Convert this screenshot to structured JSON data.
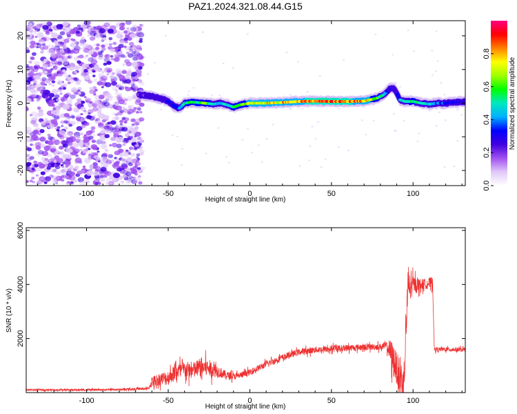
{
  "title": "PAZ1.2024.321.08.44.G15",
  "chart_data": [
    {
      "type": "heatmap",
      "xlabel": "Height of straight line (km)",
      "ylabel": "Frequency (Hz)",
      "xlim": [
        -137,
        132
      ],
      "ylim": [
        -24.5,
        24.5
      ],
      "x_ticks": [
        -100,
        -50,
        0,
        50,
        100
      ],
      "x_tick_labels": [
        "-100",
        "-50",
        "0",
        "50",
        "100"
      ],
      "y_ticks": [
        -20,
        -10,
        0,
        10,
        20
      ],
      "y_tick_labels": [
        "-20",
        "-10",
        "0",
        "10",
        "20"
      ],
      "colorbar": {
        "label": "Normalized spectral amplitude",
        "range": [
          0,
          1
        ],
        "ticks": [
          0.0,
          0.2,
          0.4,
          0.6,
          0.8
        ],
        "tick_labels": [
          "0.0",
          "0.2",
          "0.4",
          "0.6",
          "0.8"
        ],
        "colormap": [
          "#ffffff",
          "#e0c8f8",
          "#a050f0",
          "#4000e0",
          "#0000ff",
          "#00b0ff",
          "#00e8c0",
          "#00ff00",
          "#a0ff00",
          "#ffff00",
          "#ff8000",
          "#ff0000",
          "#ff0080"
        ]
      },
      "noise_region": {
        "x_range": [
          -137,
          -68
        ],
        "freq_range": [
          -24,
          24
        ],
        "amplitude_range": [
          0.05,
          0.25
        ]
      },
      "ridge": {
        "x": [
          -68,
          -62,
          -55,
          -50,
          -46,
          -43,
          -40,
          -36,
          -32,
          -28,
          -22,
          -18,
          -14,
          -10,
          -6,
          0,
          10,
          20,
          30,
          40,
          50,
          60,
          70,
          78,
          82,
          85,
          88,
          90,
          92,
          95,
          100,
          105,
          110,
          115,
          120,
          125,
          132
        ],
        "freq": [
          2.5,
          2.2,
          1.5,
          0.5,
          -1.0,
          -1.5,
          0.0,
          0.3,
          0.2,
          0.0,
          -0.3,
          0.0,
          -0.5,
          -1.2,
          -0.5,
          0.0,
          0.0,
          0.2,
          0.5,
          0.6,
          0.5,
          0.5,
          0.6,
          1.5,
          2.5,
          4.0,
          4.5,
          3.0,
          1.0,
          0.5,
          0.5,
          0.0,
          -0.3,
          0.0,
          0.0,
          0.3,
          0.5
        ],
        "amplitude": [
          0.2,
          0.25,
          0.25,
          0.3,
          0.35,
          0.4,
          0.5,
          0.6,
          0.55,
          0.6,
          0.5,
          0.45,
          0.5,
          0.55,
          0.6,
          0.7,
          0.75,
          0.8,
          0.82,
          0.85,
          0.88,
          0.85,
          0.8,
          0.6,
          0.45,
          0.3,
          0.25,
          0.3,
          0.4,
          0.5,
          0.55,
          0.5,
          0.45,
          0.4,
          0.35,
          0.3,
          0.3
        ]
      }
    },
    {
      "type": "line",
      "xlabel": "Height of straight line (km)",
      "ylabel": "SNR (10 * v/v)",
      "xlim": [
        -137,
        132
      ],
      "ylim": [
        0,
        6100
      ],
      "x_ticks": [
        -100,
        -50,
        0,
        50,
        100
      ],
      "x_tick_labels": [
        "-100",
        "-50",
        "0",
        "50",
        "100"
      ],
      "y_ticks": [
        2000,
        4000,
        6000
      ],
      "y_tick_labels": [
        "2000",
        "4000",
        "6000"
      ],
      "color": "#ee3030",
      "series": [
        {
          "x": [
            -137,
            -120,
            -100,
            -80,
            -62,
            -60,
            -55,
            -50,
            -45,
            -40,
            -35,
            -30,
            -25,
            -20,
            -18,
            -15,
            -10,
            -5,
            0,
            5,
            10,
            20,
            30,
            40,
            50,
            60,
            70,
            80,
            84,
            86,
            88,
            90,
            92,
            94,
            95,
            96,
            97,
            98,
            100,
            105,
            110,
            112,
            113,
            120,
            132
          ],
          "y": [
            100,
            100,
            100,
            110,
            150,
            400,
            500,
            550,
            800,
            850,
            800,
            950,
            900,
            800,
            750,
            650,
            600,
            650,
            750,
            900,
            1050,
            1300,
            1500,
            1580,
            1620,
            1650,
            1680,
            1700,
            1720,
            1500,
            1200,
            900,
            600,
            300,
            1200,
            2800,
            4200,
            3800,
            4000,
            4000,
            4050,
            4100,
            1600,
            1600,
            1580
          ],
          "noise": [
            40,
            40,
            40,
            40,
            60,
            250,
            300,
            350,
            350,
            400,
            400,
            450,
            400,
            300,
            250,
            200,
            150,
            150,
            150,
            150,
            150,
            150,
            150,
            150,
            150,
            150,
            150,
            150,
            200,
            600,
            800,
            700,
            900,
            800,
            700,
            900,
            900,
            600,
            400,
            250,
            250,
            250,
            100,
            100,
            100
          ]
        }
      ]
    }
  ]
}
